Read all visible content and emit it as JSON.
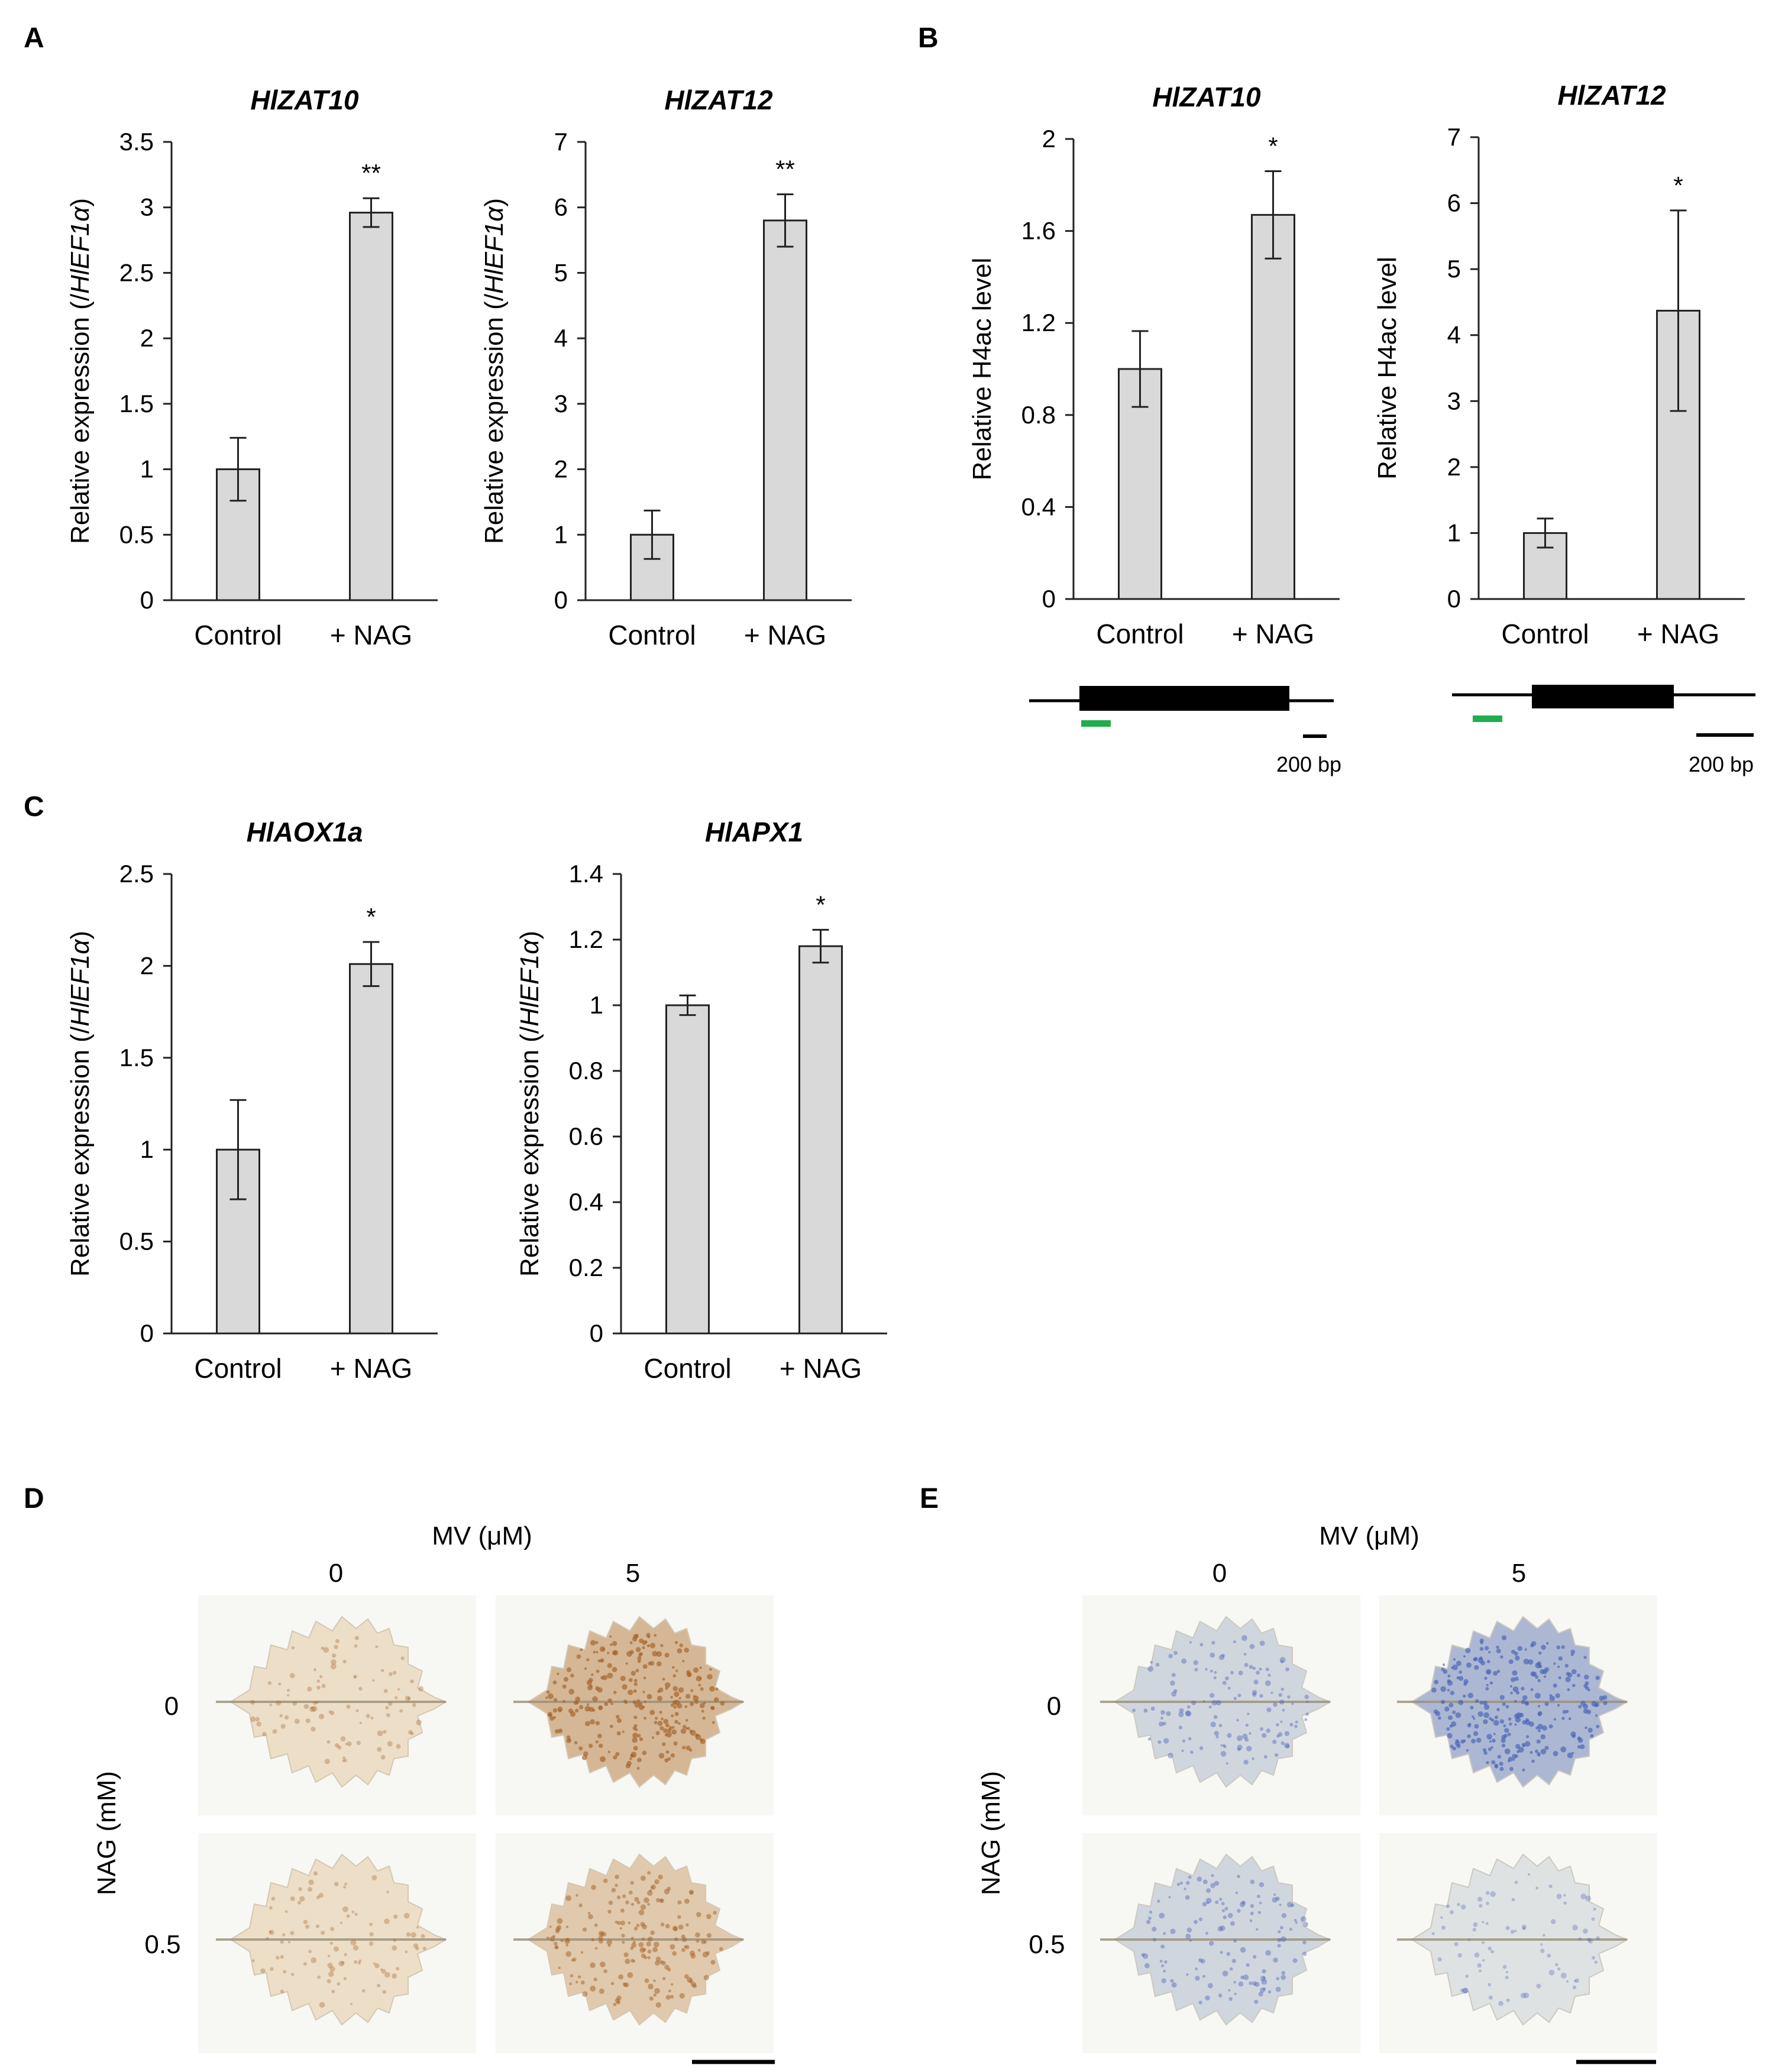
{
  "panel_letters": [
    "A",
    "B",
    "C",
    "D",
    "E"
  ],
  "chart_data": [
    {
      "type": "bar",
      "panel": "A",
      "title": "HlZAT10",
      "categories": [
        "Control",
        "+ NAG"
      ],
      "values": [
        1.0,
        2.96
      ],
      "errors": [
        0.24,
        0.11
      ],
      "significance": [
        "",
        "**"
      ],
      "ylabel_prefix": "Relative expression (/",
      "ylabel_italic": "HlEF1α",
      "ylabel_suffix": ")",
      "ylim": [
        0,
        3.5
      ],
      "yticks": [
        0,
        0.5,
        1,
        1.5,
        2,
        2.5,
        3,
        3.5
      ],
      "ytick_labels": [
        "0",
        "0.5",
        "1",
        "1.5",
        "2",
        "2.5",
        "3",
        "3.5"
      ]
    },
    {
      "type": "bar",
      "panel": "A",
      "title": "HlZAT12",
      "categories": [
        "Control",
        "+ NAG"
      ],
      "values": [
        1.0,
        5.8
      ],
      "errors": [
        0.37,
        0.4
      ],
      "significance": [
        "",
        "**"
      ],
      "ylabel_prefix": "Relative expression (/",
      "ylabel_italic": "HlEF1α",
      "ylabel_suffix": ")",
      "ylim": [
        0,
        7
      ],
      "yticks": [
        0,
        1,
        2,
        3,
        4,
        5,
        6,
        7
      ],
      "ytick_labels": [
        "0",
        "1",
        "2",
        "3",
        "4",
        "5",
        "6",
        "7"
      ]
    },
    {
      "type": "bar",
      "panel": "B",
      "title": "HlZAT10",
      "categories": [
        "Control",
        "+ NAG"
      ],
      "values": [
        1.0,
        1.67
      ],
      "errors": [
        0.165,
        0.19
      ],
      "significance": [
        "",
        "*"
      ],
      "ylabel_prefix": "Relative H4ac level",
      "ylabel_italic": "",
      "ylabel_suffix": "",
      "ylim": [
        0,
        2
      ],
      "yticks": [
        0,
        0.4,
        0.8,
        1.2,
        1.6,
        2
      ],
      "ytick_labels": [
        "0",
        "0.4",
        "0.8",
        "1.2",
        "1.6",
        "2"
      ]
    },
    {
      "type": "bar",
      "panel": "B",
      "title": "HlZAT12",
      "categories": [
        "Control",
        "+ NAG"
      ],
      "values": [
        1.0,
        4.37
      ],
      "errors": [
        0.22,
        1.52
      ],
      "significance": [
        "",
        "*"
      ],
      "ylabel_prefix": "Relative H4ac level",
      "ylabel_italic": "",
      "ylabel_suffix": "",
      "ylim": [
        0,
        7
      ],
      "yticks": [
        0,
        1,
        2,
        3,
        4,
        5,
        6,
        7
      ],
      "ytick_labels": [
        "0",
        "1",
        "2",
        "3",
        "4",
        "5",
        "6",
        "7"
      ]
    },
    {
      "type": "bar",
      "panel": "C",
      "title": "HlAOX1a",
      "categories": [
        "Control",
        "+ NAG"
      ],
      "values": [
        1.0,
        2.01
      ],
      "errors": [
        0.27,
        0.12
      ],
      "significance": [
        "",
        "*"
      ],
      "ylabel_prefix": "Relative expression (/",
      "ylabel_italic": "HlEF1α",
      "ylabel_suffix": ")",
      "ylim": [
        0,
        2.5
      ],
      "yticks": [
        0,
        0.5,
        1,
        1.5,
        2,
        2.5
      ],
      "ytick_labels": [
        "0",
        "0.5",
        "1",
        "1.5",
        "2",
        "2.5"
      ]
    },
    {
      "type": "bar",
      "panel": "C",
      "title": "HlAPX1",
      "categories": [
        "Control",
        "+ NAG"
      ],
      "values": [
        1.0,
        1.18
      ],
      "errors": [
        0.03,
        0.05
      ],
      "significance": [
        "",
        "*"
      ],
      "ylabel_prefix": "Relative expression (/",
      "ylabel_italic": "HlEF1α",
      "ylabel_suffix": ")",
      "ylim": [
        0,
        1.4
      ],
      "yticks": [
        0,
        0.2,
        0.4,
        0.6,
        0.8,
        1,
        1.2,
        1.4
      ],
      "ytick_labels": [
        "0",
        "0.2",
        "0.4",
        "0.6",
        "0.8",
        "1",
        "1.2",
        "1.4"
      ]
    }
  ],
  "gene_diagrams": [
    {
      "panel": "B",
      "scale_label": "200 bp"
    },
    {
      "panel": "B",
      "scale_label": "200 bp"
    }
  ],
  "staining_panels": [
    {
      "panel": "D",
      "column_header": "MV (μM)",
      "column_values": [
        "0",
        "5"
      ],
      "row_header": "NAG (mM)",
      "row_values": [
        "0",
        "0.5"
      ],
      "stain": "DAB (brown)",
      "colors": {
        "background": "#ffffff",
        "leaf_base": "#f3ead6",
        "stain": "#a5642b"
      },
      "stain_intensity": [
        [
          0.2,
          0.85
        ],
        [
          0.2,
          0.55
        ]
      ]
    },
    {
      "panel": "E",
      "column_header": "MV (μM)",
      "column_values": [
        "0",
        "5"
      ],
      "row_header": "NAG (mM)",
      "row_values": [
        "0",
        "0.5"
      ],
      "stain": "NBT (blue)",
      "colors": {
        "background": "#ffffff",
        "leaf_base": "#e9ebe6",
        "stain": "#4a63b5"
      },
      "stain_intensity": [
        [
          0.35,
          0.85
        ],
        [
          0.35,
          0.15
        ]
      ]
    }
  ],
  "colors": {
    "bar_fill": "#d9d9d9",
    "bar_stroke": "#222222",
    "primer": "#1fae4b"
  }
}
